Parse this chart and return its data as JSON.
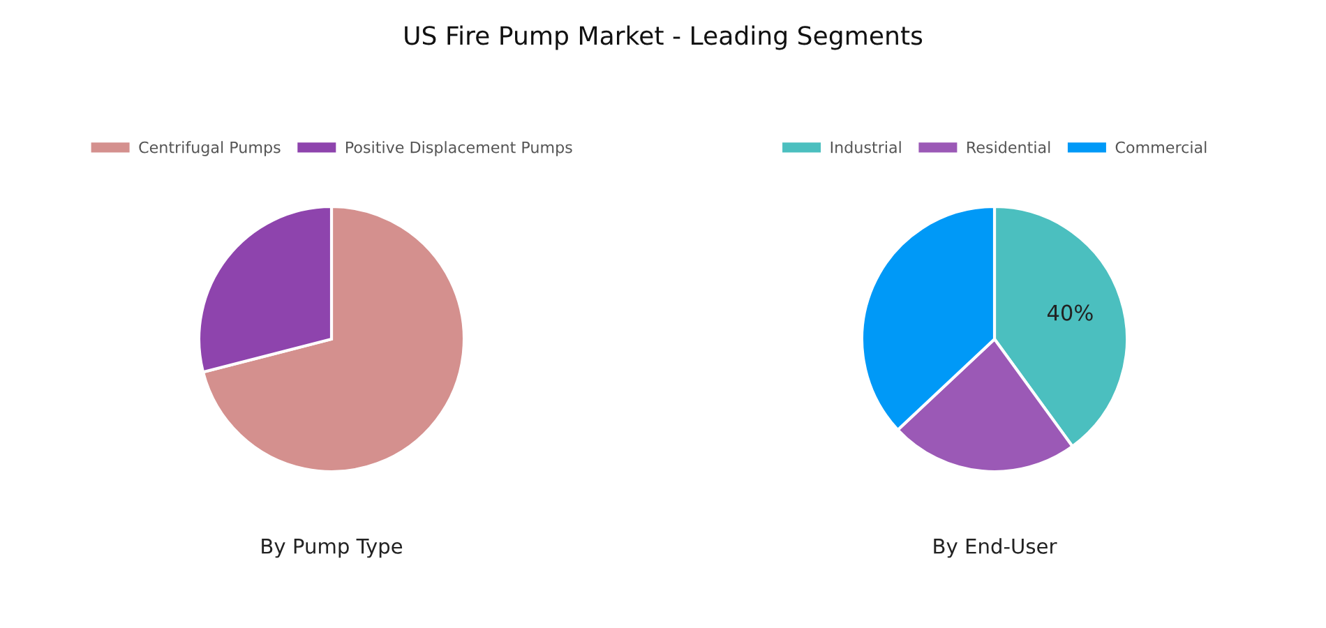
{
  "chart_data": [
    {
      "type": "pie",
      "title": "By Pump Type",
      "annotations": [
        "US Fire Pump Market - Leading Segments"
      ],
      "categories": [
        "Centrifugal Pumps",
        "Positive Displacement Pumps"
      ],
      "values": [
        71,
        29
      ],
      "colors": [
        "#d4908e",
        "#8e44ad"
      ],
      "legend": "top"
    },
    {
      "type": "pie",
      "title": "By End-User",
      "categories": [
        "Industrial",
        "Residential",
        "Commercial"
      ],
      "values": [
        40,
        23,
        37
      ],
      "colors": [
        "#4bbfbf",
        "#9b59b6",
        "#0099f7"
      ],
      "value_labels": [
        "40%",
        null,
        null
      ],
      "legend": "top"
    }
  ]
}
